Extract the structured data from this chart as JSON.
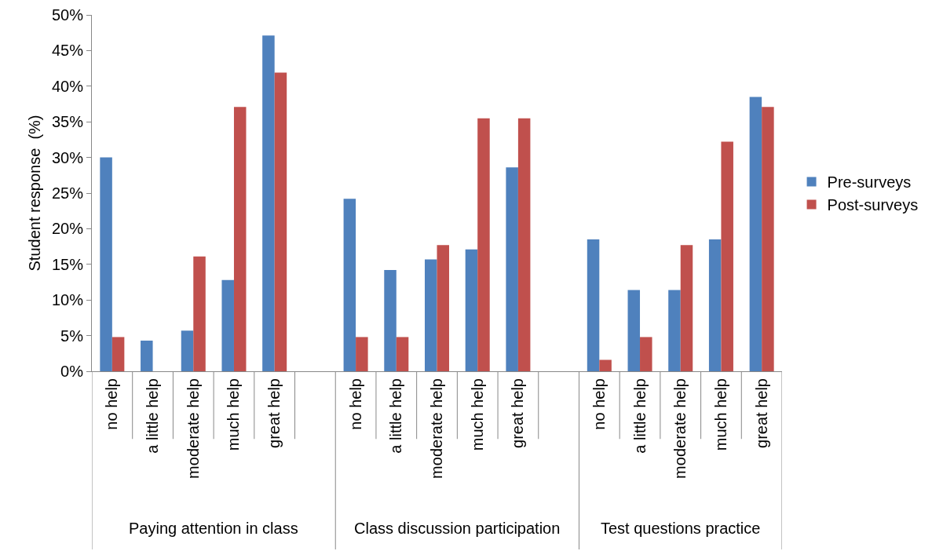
{
  "chart_data": {
    "type": "bar",
    "ylabel": "Student response  (%)",
    "categories": [
      "no help",
      "a little help",
      "moderate help",
      "much help",
      "great help",
      null,
      "no help",
      "a little help",
      "moderate help",
      "much help",
      "great help",
      null,
      "no help",
      "a little help",
      "moderate help",
      "much help",
      "great help"
    ],
    "series": [
      {
        "name": "Pre-surveys",
        "color": "#4f81bd",
        "values": [
          30.0,
          4.3,
          5.7,
          12.8,
          47.1,
          null,
          24.2,
          14.2,
          15.7,
          17.1,
          28.6,
          null,
          18.5,
          11.4,
          11.4,
          18.5,
          38.5
        ]
      },
      {
        "name": "Post-surveys",
        "color": "#c0504d",
        "values": [
          4.8,
          0,
          16.1,
          37.1,
          41.9,
          null,
          4.8,
          4.8,
          17.7,
          35.5,
          35.5,
          null,
          1.6,
          4.8,
          17.7,
          32.2,
          37.1
        ]
      }
    ],
    "annotations": [
      "Paying attention in class",
      "Class discussion participation",
      "Test questions practice"
    ],
    "ylim": [
      0,
      50
    ],
    "yticks": [
      {
        "value": 0,
        "label": "0%"
      },
      {
        "value": 5,
        "label": "5%"
      },
      {
        "value": 10,
        "label": "10%"
      },
      {
        "value": 15,
        "label": "15%"
      },
      {
        "value": 20,
        "label": "20%"
      },
      {
        "value": 25,
        "label": "25%"
      },
      {
        "value": 30,
        "label": "30%"
      },
      {
        "value": 35,
        "label": "35%"
      },
      {
        "value": 40,
        "label": "40%"
      },
      {
        "value": 45,
        "label": "45%"
      },
      {
        "value": 50,
        "label": "50%"
      }
    ],
    "grid": false,
    "legend": "right"
  }
}
